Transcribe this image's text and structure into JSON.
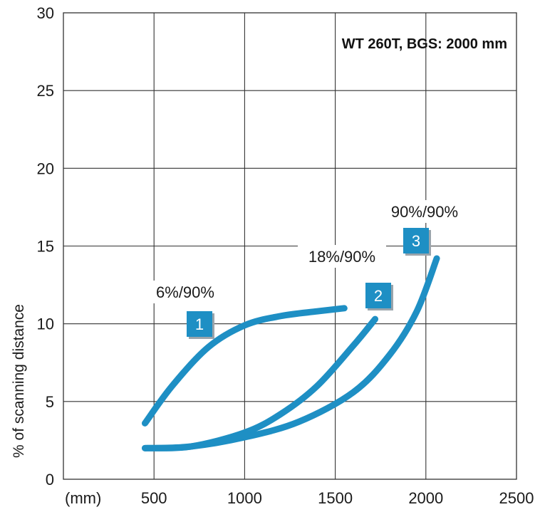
{
  "chart_data": {
    "type": "line",
    "title": "WT 260T, BGS: 2000 mm",
    "xlabel": "(mm)",
    "ylabel": "% of scanning distance",
    "xlim": [
      0,
      2500
    ],
    "ylim": [
      0,
      30
    ],
    "xticks": [
      500,
      1000,
      1500,
      2000,
      2500
    ],
    "yticks": [
      0,
      5,
      10,
      15,
      20,
      25,
      30
    ],
    "grid": true,
    "line_color": "#1e8fc4",
    "badge_color": "#1e8fc4",
    "series": [
      {
        "id": "1",
        "name": "6%/90%",
        "x": [
          450,
          600,
          800,
          1000,
          1200,
          1400,
          1550
        ],
        "y": [
          3.6,
          6.0,
          8.5,
          9.9,
          10.5,
          10.8,
          11.0
        ]
      },
      {
        "id": "2",
        "name": "18%/90%",
        "x": [
          450,
          700,
          1000,
          1200,
          1400,
          1600,
          1720
        ],
        "y": [
          2.0,
          2.1,
          3.0,
          4.2,
          6.0,
          8.6,
          10.3
        ]
      },
      {
        "id": "3",
        "name": "90%/90%",
        "x": [
          450,
          700,
          1000,
          1300,
          1600,
          1800,
          1950,
          2060
        ],
        "y": [
          2.0,
          2.1,
          2.7,
          3.7,
          5.6,
          8.0,
          10.8,
          14.2
        ]
      }
    ]
  }
}
